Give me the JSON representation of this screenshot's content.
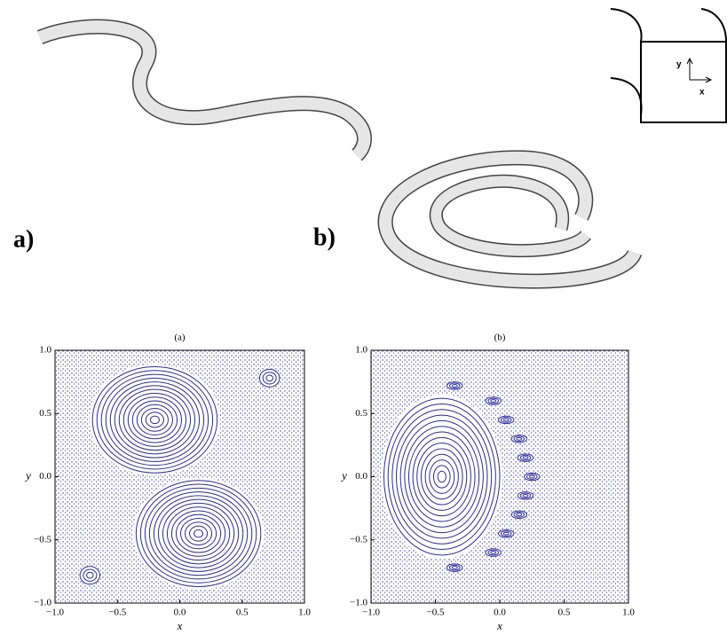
{
  "top_panels": {
    "label_a": "a)",
    "label_b": "b)",
    "inset": {
      "y_label": "y",
      "x_label": "x"
    }
  },
  "plots": [
    {
      "title": "(a)",
      "xlabel": "x",
      "ylabel": "y",
      "xlim": [
        -1,
        1
      ],
      "ylim": [
        -1,
        1
      ],
      "xticks": [
        {
          "value": -1,
          "label": "−1.0"
        },
        {
          "value": -0.5,
          "label": "−0.5"
        },
        {
          "value": 0,
          "label": "0.0"
        },
        0.5,
        {
          "value": 1,
          "label": "1.0"
        }
      ],
      "yticks": [
        {
          "value": -1,
          "label": "−1.0"
        },
        {
          "value": -0.5,
          "label": "−0.5"
        },
        {
          "value": 0,
          "label": "0.0"
        },
        0.5,
        {
          "value": 1,
          "label": "1.0"
        }
      ]
    },
    {
      "title": "(b)",
      "xlabel": "x",
      "ylabel": "y",
      "xlim": [
        -1,
        1
      ],
      "ylim": [
        -1,
        1
      ],
      "xticks": [
        {
          "value": -1,
          "label": "−1.0"
        },
        {
          "value": -0.5,
          "label": "−0.5"
        },
        {
          "value": 0,
          "label": "0.0"
        },
        0.5,
        {
          "value": 1,
          "label": "1.0"
        }
      ],
      "yticks": [
        {
          "value": -1,
          "label": "−1.0"
        },
        {
          "value": -0.5,
          "label": "−0.5"
        },
        {
          "value": 0,
          "label": "0.0"
        },
        0.5,
        {
          "value": 1,
          "label": "1.0"
        }
      ]
    }
  ]
}
